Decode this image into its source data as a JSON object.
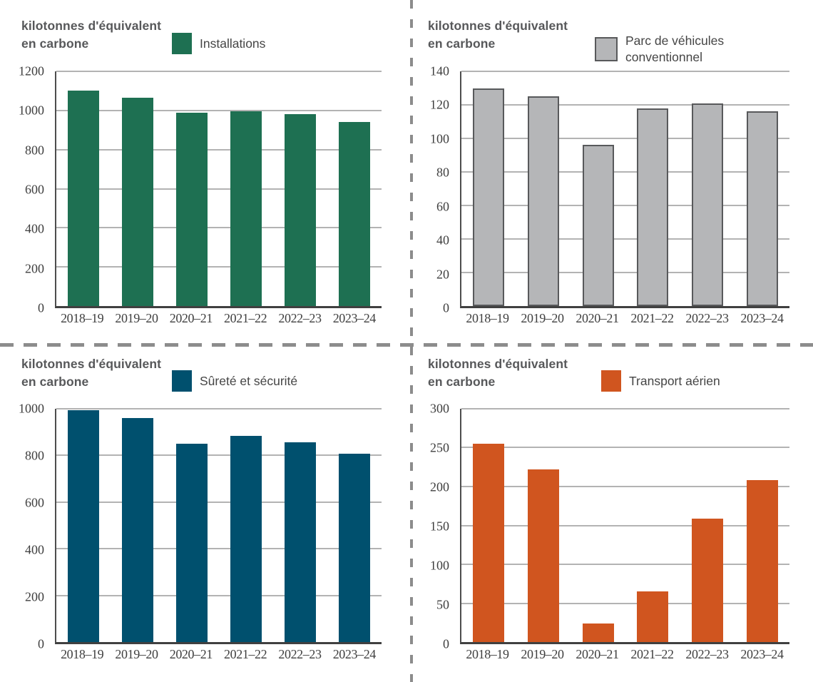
{
  "page": {
    "background": "#FFFFFF",
    "divider_color": "#8C8C8C",
    "gridline_color": "#B3B3B3",
    "axis_color": "#404040",
    "tick_text_color": "#3F3F3F",
    "title_text_color": "#57585A"
  },
  "axis_unit_label": {
    "line1": "kilotonnes d'équivalent",
    "line2": "en carbone"
  },
  "chart_data": [
    {
      "type": "bar",
      "panel": "top-left",
      "unit_label_lines": [
        "kilotonnes d'équivalent",
        "en carbone"
      ],
      "legend_lines": [
        "Installations"
      ],
      "legend_position": "top",
      "grid": true,
      "categories": [
        "2018–19",
        "2019–20",
        "2020–21",
        "2021–22",
        "2022–23",
        "2023–24"
      ],
      "values": [
        1100,
        1065,
        990,
        995,
        980,
        940
      ],
      "ylim": [
        0,
        1200
      ],
      "ytick": 200,
      "bar_color": "#1E7052"
    },
    {
      "type": "bar",
      "panel": "top-right",
      "unit_label_lines": [
        "kilotonnes d'équivalent",
        "en carbone"
      ],
      "legend_lines": [
        "Parc de véhicules",
        "conventionnel"
      ],
      "legend_position": "top",
      "grid": true,
      "categories": [
        "2018–19",
        "2019–20",
        "2020–21",
        "2021–22",
        "2022–23",
        "2023–24"
      ],
      "values": [
        130,
        125,
        96,
        118,
        121,
        116
      ],
      "ylim": [
        0,
        140
      ],
      "ytick": 20,
      "bar_color": "#B5B6B8",
      "bar_border": "#58595B"
    },
    {
      "type": "bar",
      "panel": "bottom-left",
      "unit_label_lines": [
        "kilotonnes d'équivalent",
        "en carbone"
      ],
      "legend_lines": [
        "Sûreté et sécurité"
      ],
      "legend_position": "top",
      "grid": true,
      "categories": [
        "2018–19",
        "2019–20",
        "2020–21",
        "2021–22",
        "2022–23",
        "2023–24"
      ],
      "values": [
        995,
        960,
        850,
        885,
        855,
        808
      ],
      "ylim": [
        0,
        1000
      ],
      "ytick": 200,
      "bar_color": "#00506E"
    },
    {
      "type": "bar",
      "panel": "bottom-right",
      "unit_label_lines": [
        "kilotonnes d'équivalent",
        "en carbone"
      ],
      "legend_lines": [
        "Transport aérien"
      ],
      "legend_position": "top",
      "grid": true,
      "categories": [
        "2018–19",
        "2019–20",
        "2020–21",
        "2021–22",
        "2022–23",
        "2023–24"
      ],
      "values": [
        255,
        222,
        24,
        65,
        159,
        208
      ],
      "ylim": [
        0,
        300
      ],
      "ytick": 50,
      "bar_color": "#D0551F"
    }
  ]
}
